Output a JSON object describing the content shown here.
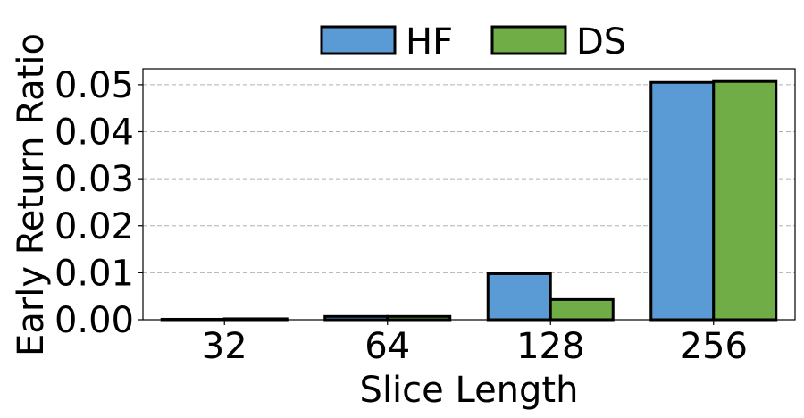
{
  "chart_data": {
    "type": "bar",
    "title": "",
    "xlabel": "Slice Length",
    "ylabel": "Early Return Ratio",
    "categories": [
      "32",
      "64",
      "128",
      "256"
    ],
    "series": [
      {
        "name": "HF",
        "color": "#5b9bd5",
        "values": [
          0.0001,
          0.0007,
          0.0098,
          0.0505
        ]
      },
      {
        "name": "DS",
        "color": "#70ad47",
        "values": [
          0.0002,
          0.0007,
          0.0043,
          0.0507
        ]
      }
    ],
    "ylim": [
      0,
      0.0534
    ],
    "yticks": [
      "0.00",
      "0.01",
      "0.02",
      "0.03",
      "0.04",
      "0.05"
    ],
    "grid": "y-dashed",
    "legend_position": "top-center"
  }
}
